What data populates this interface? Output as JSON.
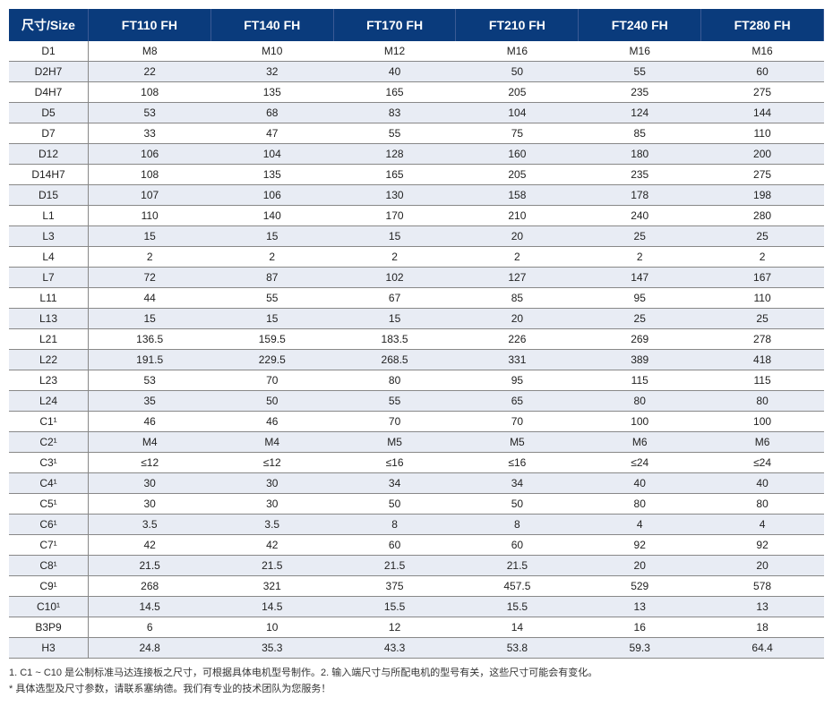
{
  "table": {
    "header_bg": "#0a3b7c",
    "header_fg": "#ffffff",
    "stripe_bg": "#e8ecf4",
    "columns": [
      "尺寸/Size",
      "FT110 FH",
      "FT140 FH",
      "FT170 FH",
      "FT210 FH",
      "FT240 FH",
      "FT280 FH"
    ],
    "rows": [
      [
        "D1",
        "M8",
        "M10",
        "M12",
        "M16",
        "M16",
        "M16"
      ],
      [
        "D2H7",
        "22",
        "32",
        "40",
        "50",
        "55",
        "60"
      ],
      [
        "D4H7",
        "108",
        "135",
        "165",
        "205",
        "235",
        "275"
      ],
      [
        "D5",
        "53",
        "68",
        "83",
        "104",
        "124",
        "144"
      ],
      [
        "D7",
        "33",
        "47",
        "55",
        "75",
        "85",
        "110"
      ],
      [
        "D12",
        "106",
        "104",
        "128",
        "160",
        "180",
        "200"
      ],
      [
        "D14H7",
        "108",
        "135",
        "165",
        "205",
        "235",
        "275"
      ],
      [
        "D15",
        "107",
        "106",
        "130",
        "158",
        "178",
        "198"
      ],
      [
        "L1",
        "110",
        "140",
        "170",
        "210",
        "240",
        "280"
      ],
      [
        "L3",
        "15",
        "15",
        "15",
        "20",
        "25",
        "25"
      ],
      [
        "L4",
        "2",
        "2",
        "2",
        "2",
        "2",
        "2"
      ],
      [
        "L7",
        "72",
        "87",
        "102",
        "127",
        "147",
        "167"
      ],
      [
        "L11",
        "44",
        "55",
        "67",
        "85",
        "95",
        "110"
      ],
      [
        "L13",
        "15",
        "15",
        "15",
        "20",
        "25",
        "25"
      ],
      [
        "L21",
        "136.5",
        "159.5",
        "183.5",
        "226",
        "269",
        "278"
      ],
      [
        "L22",
        "191.5",
        "229.5",
        "268.5",
        "331",
        "389",
        "418"
      ],
      [
        "L23",
        "53",
        "70",
        "80",
        "95",
        "115",
        "115"
      ],
      [
        "L24",
        "35",
        "50",
        "55",
        "65",
        "80",
        "80"
      ],
      [
        "C1¹",
        "46",
        "46",
        "70",
        "70",
        "100",
        "100"
      ],
      [
        "C2¹",
        "M4",
        "M4",
        "M5",
        "M5",
        "M6",
        "M6"
      ],
      [
        "C3¹",
        "≤12",
        "≤12",
        "≤16",
        "≤16",
        "≤24",
        "≤24"
      ],
      [
        "C4¹",
        "30",
        "30",
        "34",
        "34",
        "40",
        "40"
      ],
      [
        "C5¹",
        "30",
        "30",
        "50",
        "50",
        "80",
        "80"
      ],
      [
        "C6¹",
        "3.5",
        "3.5",
        "8",
        "8",
        "4",
        "4"
      ],
      [
        "C7¹",
        "42",
        "42",
        "60",
        "60",
        "92",
        "92"
      ],
      [
        "C8¹",
        "21.5",
        "21.5",
        "21.5",
        "21.5",
        "20",
        "20"
      ],
      [
        "C9¹",
        "268",
        "321",
        "375",
        "457.5",
        "529",
        "578"
      ],
      [
        "C10¹",
        "14.5",
        "14.5",
        "15.5",
        "15.5",
        "13",
        "13"
      ],
      [
        "B3P9",
        "6",
        "10",
        "12",
        "14",
        "16",
        "18"
      ],
      [
        "H3",
        "24.8",
        "35.3",
        "43.3",
        "53.8",
        "59.3",
        "64.4"
      ]
    ]
  },
  "footnotes": {
    "line1": "1. C1 ~ C10 是公制标准马达连接板之尺寸，可根据具体电机型号制作。2. 输入端尺寸与所配电机的型号有关，这些尺寸可能会有变化。",
    "line2": "* 具体选型及尺寸参数，请联系塞纳德。我们有专业的技术团队为您服务！"
  }
}
